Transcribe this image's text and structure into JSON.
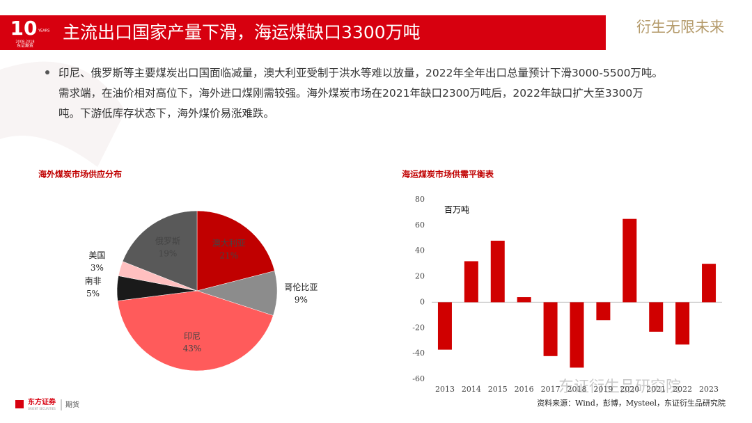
{
  "header": {
    "logo_number": "10",
    "logo_years": "YEARS",
    "logo_range": "2008-2018",
    "logo_company": "东证期货",
    "title": "主流出口国家产量下滑，海运煤缺口3300万吨",
    "slogan": "衍生无限未来"
  },
  "body": {
    "bullet": "印尼、俄罗斯等主要煤炭出口国面临减量，澳大利亚受制于洪水等难以放量，2022年全年出口总量预计下滑3000-5500万吨。需求端，在油价相对高位下，海外进口煤刚需较强。海外煤炭市场在2021年缺口2300万吨后，2022年缺口扩大至3300万吨。下游低库存状态下，海外煤价易涨难跌。"
  },
  "chart_data": [
    {
      "type": "pie",
      "title": "海外煤炭市场供应分布",
      "categories": [
        "澳大利亚",
        "哥伦比亚",
        "印尼",
        "南非",
        "美国",
        "俄罗斯"
      ],
      "values": [
        21,
        9,
        43,
        5,
        3,
        19
      ],
      "value_labels": [
        "21%",
        "9%",
        "43%",
        "5%",
        "3%",
        "19%"
      ],
      "colors": [
        "#c00000",
        "#8c8c8c",
        "#ff5b5b",
        "#1a1a1a",
        "#ffc0c0",
        "#595959"
      ]
    },
    {
      "type": "bar",
      "title": "海运煤炭市场供需平衡表",
      "unit": "百万吨",
      "categories": [
        "2013",
        "2014",
        "2015",
        "2016",
        "2017",
        "2018",
        "2019",
        "2020",
        "2021",
        "2022",
        "2023"
      ],
      "values": [
        -37,
        32,
        48,
        4,
        -42,
        -51,
        -14,
        65,
        -23,
        -33,
        30
      ],
      "color": "#d00000",
      "ylim": [
        -60,
        80
      ],
      "yticks": [
        -60,
        -40,
        -20,
        0,
        20,
        40,
        60,
        80
      ],
      "source": "资料来源：Wind，彭博，Mysteel，东证衍生品研究院"
    }
  ],
  "footer": {
    "brand": "东方证券",
    "brand_en": "ORIENT SECURITIES",
    "division": "期货",
    "watermark": "东证衍生品研究院"
  }
}
